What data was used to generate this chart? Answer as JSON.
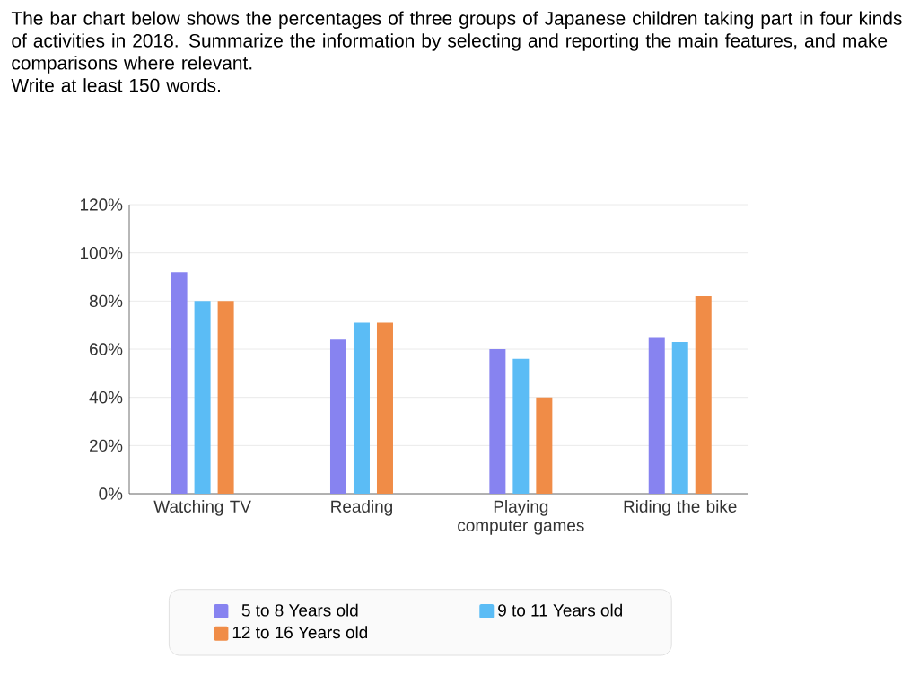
{
  "chart_data": {
    "type": "bar",
    "title": "The bar chart below shows the percentages of three groups of Japanese children taking part in four kinds of activities in 2018. Summarize the information by selecting and reporting the main features, and make comparisons where relevant.",
    "subtitle": "Write at least 150 words.",
    "categories": [
      "Watching TV",
      "Reading",
      "Playing computer games",
      "Riding the bike"
    ],
    "series": [
      {
        "name": "5 to 8 Years old",
        "color": "#8783f0",
        "values": [
          92,
          64,
          60,
          65
        ]
      },
      {
        "name": "9 to 11 Years old",
        "color": "#5bbcf5",
        "values": [
          80,
          71,
          56,
          63
        ]
      },
      {
        "name": "12 to 16 Years old",
        "color": "#f08c47",
        "values": [
          80,
          71,
          40,
          82
        ]
      }
    ],
    "ylim": [
      0,
      120
    ],
    "yticks": [
      {
        "value": 0,
        "label": "0%"
      },
      {
        "value": 20,
        "label": "20%"
      },
      {
        "value": 40,
        "label": "40%"
      },
      {
        "value": 60,
        "label": "60%"
      },
      {
        "value": 80,
        "label": "80%"
      },
      {
        "value": 100,
        "label": "100%"
      },
      {
        "value": 120,
        "label": "120%"
      }
    ],
    "grid": "y",
    "legend": "bottom"
  }
}
